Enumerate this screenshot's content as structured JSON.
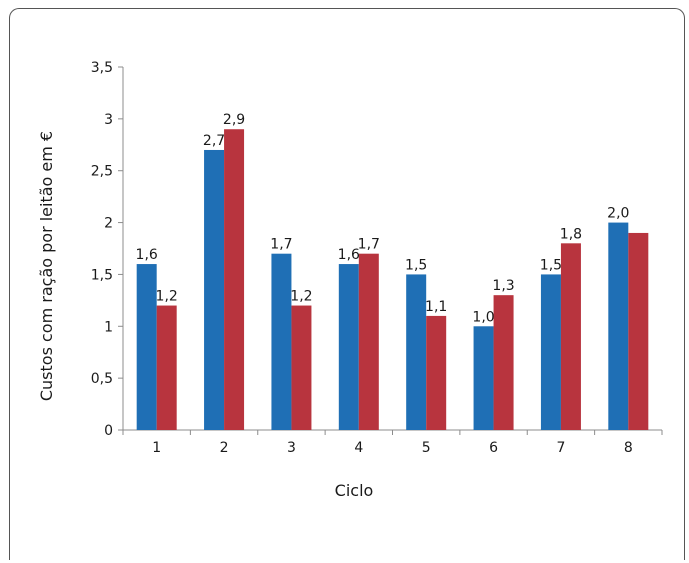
{
  "chart_data": {
    "type": "bar",
    "title": "",
    "xlabel": "Ciclo",
    "ylabel": "Custos com ração por leitão em €",
    "categories": [
      "1",
      "2",
      "3",
      "4",
      "5",
      "6",
      "7",
      "8"
    ],
    "ylim": [
      0,
      3.5
    ],
    "yticks": [
      "0",
      "0,5",
      "1",
      "1,5",
      "2",
      "2,5",
      "3",
      "3,5"
    ],
    "grid": false,
    "legend": "none",
    "series": [
      {
        "color": "#1f6fb5",
        "values": [
          1.6,
          2.7,
          1.7,
          1.6,
          1.5,
          1.0,
          1.5,
          2.0
        ],
        "labels": [
          "1,6",
          "2,7",
          "1,7",
          "1,6",
          "1,5",
          "1,0",
          "1,5",
          "2,0"
        ]
      },
      {
        "color": "#b8343e",
        "values": [
          1.2,
          2.9,
          1.2,
          1.7,
          1.1,
          1.3,
          1.8,
          1.9
        ],
        "labels": [
          "1,2",
          "2,9",
          "1,2",
          "1,7",
          "1,1",
          "1,3",
          "1,8",
          ""
        ]
      }
    ]
  }
}
